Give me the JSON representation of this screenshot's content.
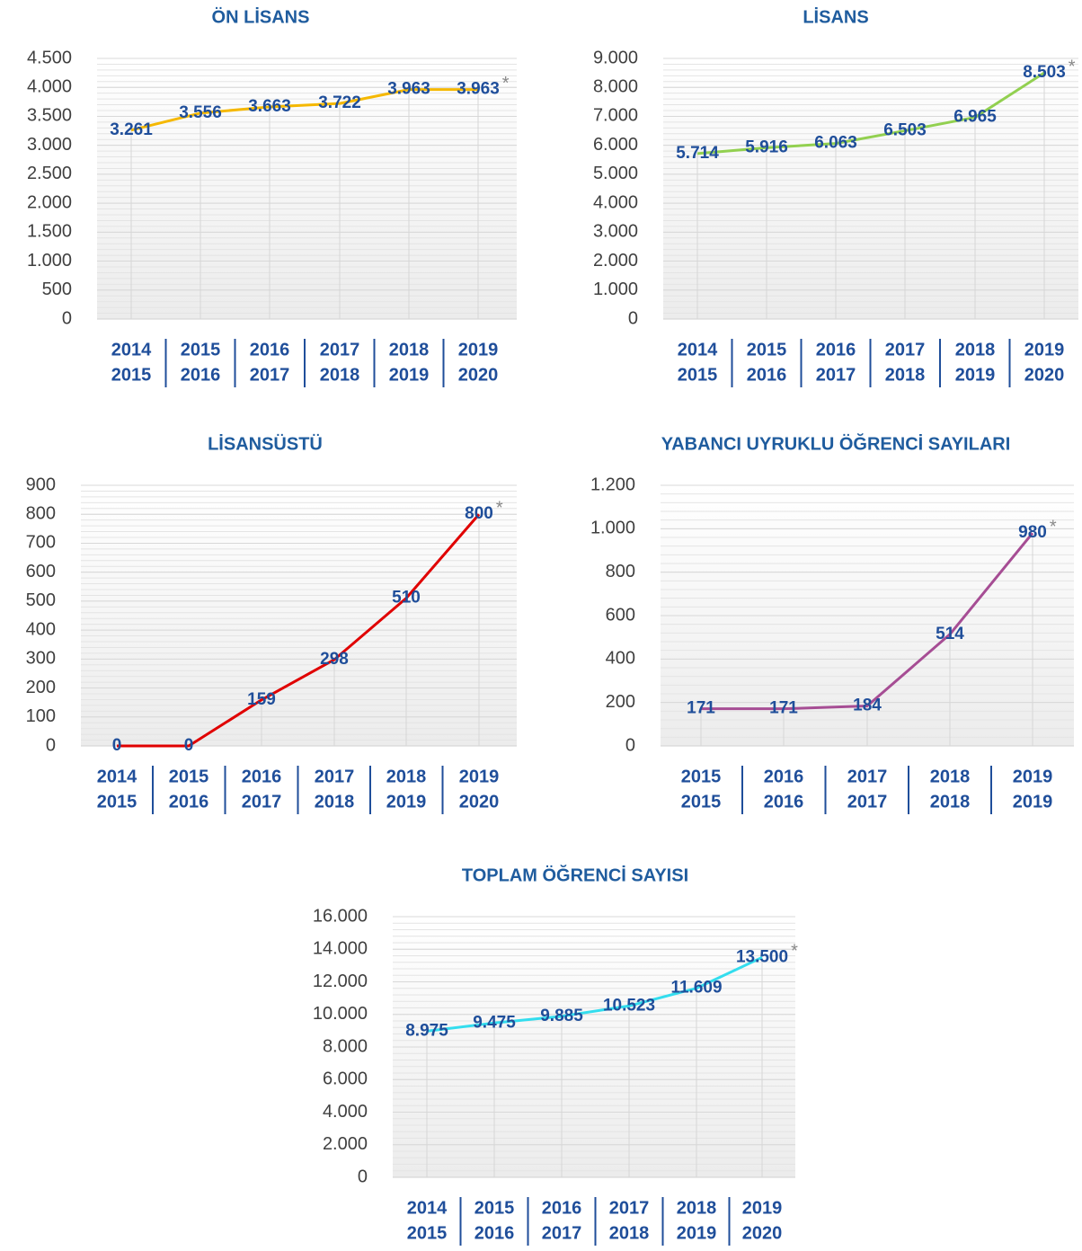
{
  "chart_data": [
    {
      "type": "line",
      "title": "ÖN LİSANS",
      "color": "#f5b800",
      "annotation": "*",
      "categories": [
        [
          "2014",
          "2015"
        ],
        [
          "2015",
          "2016"
        ],
        [
          "2016",
          "2017"
        ],
        [
          "2017",
          "2018"
        ],
        [
          "2018",
          "2019"
        ],
        [
          "2019",
          "2020"
        ]
      ],
      "values": [
        3261,
        3556,
        3663,
        3722,
        3963,
        3963
      ],
      "value_labels": [
        "3.261",
        "3.556",
        "3.663",
        "3.722",
        "3.963",
        "3.963"
      ],
      "ylim": [
        0,
        4500
      ],
      "yticks": [
        0,
        500,
        {
          "value": 1000,
          "label": "1.000"
        },
        {
          "value": 1500,
          "label": "1.500"
        },
        {
          "value": 2000,
          "label": "2.000"
        },
        {
          "value": 2500,
          "label": "2.500"
        },
        {
          "value": 3000,
          "label": "3.000"
        },
        {
          "value": 3500,
          "label": "3.500"
        },
        {
          "value": 4000,
          "label": "4.000"
        },
        {
          "value": 4500,
          "label": "4.500"
        }
      ]
    },
    {
      "type": "line",
      "title": "LİSANS",
      "color": "#92d050",
      "annotation": "*",
      "categories": [
        [
          "2014",
          "2015"
        ],
        [
          "2015",
          "2016"
        ],
        [
          "2016",
          "2017"
        ],
        [
          "2017",
          "2018"
        ],
        [
          "2018",
          "2019"
        ],
        [
          "2019",
          "2020"
        ]
      ],
      "values": [
        5714,
        5916,
        6063,
        6503,
        6965,
        8503
      ],
      "value_labels": [
        "5.714",
        "5.916",
        "6.063",
        "6.503",
        "6.965",
        "8.503"
      ],
      "ylim": [
        0,
        9000
      ],
      "yticks": [
        0,
        {
          "value": 1000,
          "label": "1.000"
        },
        {
          "value": 2000,
          "label": "2.000"
        },
        {
          "value": 3000,
          "label": "3.000"
        },
        {
          "value": 4000,
          "label": "4.000"
        },
        {
          "value": 5000,
          "label": "5.000"
        },
        {
          "value": 6000,
          "label": "6.000"
        },
        {
          "value": 7000,
          "label": "7.000"
        },
        {
          "value": 8000,
          "label": "8.000"
        },
        {
          "value": 9000,
          "label": "9.000"
        }
      ]
    },
    {
      "type": "line",
      "title": "LİSANSÜSTÜ",
      "color": "#e00000",
      "annotation": "*",
      "categories": [
        [
          "2014",
          "2015"
        ],
        [
          "2015",
          "2016"
        ],
        [
          "2016",
          "2017"
        ],
        [
          "2017",
          "2018"
        ],
        [
          "2018",
          "2019"
        ],
        [
          "2019",
          "2020"
        ]
      ],
      "values": [
        0,
        0,
        159,
        298,
        510,
        800
      ],
      "ylim": [
        0,
        900
      ],
      "yticks": [
        0,
        100,
        200,
        300,
        400,
        500,
        600,
        700,
        800,
        900
      ]
    },
    {
      "type": "line",
      "title": "YABANCI UYRUKLU ÖĞRENCİ SAYILARI",
      "color": "#a64d94",
      "annotation": "*",
      "categories": [
        [
          "2015",
          "2015"
        ],
        [
          "2016",
          "2016"
        ],
        [
          "2017",
          "2017"
        ],
        [
          "2018",
          "2018"
        ],
        [
          "2019",
          "2019"
        ]
      ],
      "values": [
        171,
        171,
        184,
        514,
        980
      ],
      "ylim": [
        0,
        1200
      ],
      "yticks": [
        0,
        200,
        400,
        600,
        800,
        {
          "value": 1000,
          "label": "1.000"
        },
        {
          "value": 1200,
          "label": "1.200"
        }
      ]
    },
    {
      "type": "line",
      "title": "TOPLAM ÖĞRENCİ SAYISI",
      "color": "#33ddee",
      "annotation": "*",
      "categories": [
        [
          "2014",
          "2015"
        ],
        [
          "2015",
          "2016"
        ],
        [
          "2016",
          "2017"
        ],
        [
          "2017",
          "2018"
        ],
        [
          "2018",
          "2019"
        ],
        [
          "2019",
          "2020"
        ]
      ],
      "values": [
        8975,
        9475,
        9885,
        10523,
        11609,
        13500
      ],
      "value_labels": [
        "8.975",
        "9.475",
        "9.885",
        "10.523",
        "11.609",
        "13.500"
      ],
      "ylim": [
        0,
        16000
      ],
      "yticks": [
        0,
        {
          "value": 2000,
          "label": "2.000"
        },
        {
          "value": 4000,
          "label": "4.000"
        },
        {
          "value": 6000,
          "label": "6.000"
        },
        {
          "value": 8000,
          "label": "8.000"
        },
        {
          "value": 10000,
          "label": "10.000"
        },
        {
          "value": 12000,
          "label": "12.000"
        },
        {
          "value": 14000,
          "label": "14.000"
        },
        {
          "value": 16000,
          "label": "16.000"
        }
      ]
    }
  ]
}
